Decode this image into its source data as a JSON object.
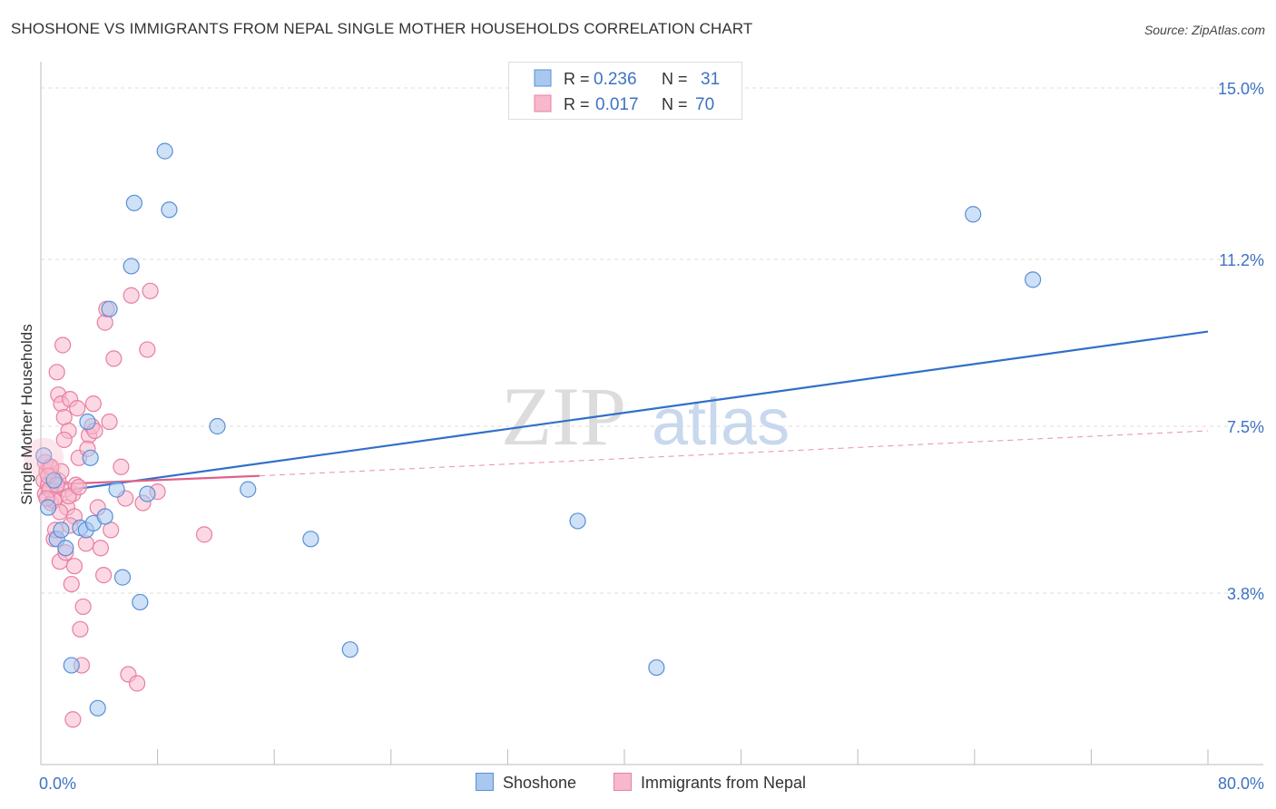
{
  "header": {
    "title": "SHOSHONE VS IMMIGRANTS FROM NEPAL SINGLE MOTHER HOUSEHOLDS CORRELATION CHART",
    "source": "Source: ZipAtlas.com"
  },
  "watermark": {
    "zip": "ZIP",
    "atlas": "atlas"
  },
  "colors": {
    "shoshone_fill": "#a8c8f0",
    "shoshone_stroke": "#5a8fd6",
    "shoshone_line": "#3070c8",
    "nepal_fill": "#f7b8cc",
    "nepal_stroke": "#e87fa0",
    "nepal_line": "#e0608a",
    "tick_text": "#3d72c4"
  },
  "chart_data": {
    "type": "scatter",
    "title": "SHOSHONE VS IMMIGRANTS FROM NEPAL SINGLE MOTHER HOUSEHOLDS CORRELATION CHART",
    "xlabel": "",
    "ylabel": "Single Mother Households",
    "xlim": [
      0,
      80
    ],
    "ylim": [
      0,
      15.7
    ],
    "x_tick_labels": [
      "0.0%",
      "80.0%"
    ],
    "y_ticks": [
      {
        "value": 15.0,
        "label": "15.0%"
      },
      {
        "value": 11.2,
        "label": "11.2%"
      },
      {
        "value": 7.5,
        "label": "7.5%"
      },
      {
        "value": 3.8,
        "label": "3.8%"
      }
    ],
    "legend": [
      {
        "series": "Shoshone",
        "r_label": "R =",
        "r_value": "0.236",
        "n_label": "N =",
        "n_value": "31"
      },
      {
        "series": "Immigrants from Nepal",
        "r_label": "R =",
        "r_value": "0.017",
        "n_label": "N =",
        "n_value": "70"
      }
    ],
    "series": [
      {
        "name": "Shoshone",
        "trend": {
          "x": [
            0,
            80
          ],
          "y": [
            6.0,
            9.6
          ]
        },
        "points": [
          {
            "x": 0.2,
            "y": 6.85
          },
          {
            "x": 0.5,
            "y": 5.7
          },
          {
            "x": 0.9,
            "y": 6.3
          },
          {
            "x": 1.1,
            "y": 5.0
          },
          {
            "x": 1.4,
            "y": 5.2
          },
          {
            "x": 1.7,
            "y": 4.8
          },
          {
            "x": 2.1,
            "y": 2.2
          },
          {
            "x": 2.7,
            "y": 5.25
          },
          {
            "x": 3.1,
            "y": 5.2
          },
          {
            "x": 3.2,
            "y": 7.6
          },
          {
            "x": 3.4,
            "y": 6.8
          },
          {
            "x": 3.6,
            "y": 5.35
          },
          {
            "x": 3.9,
            "y": 1.25
          },
          {
            "x": 4.4,
            "y": 5.5
          },
          {
            "x": 4.7,
            "y": 10.1
          },
          {
            "x": 5.2,
            "y": 6.1
          },
          {
            "x": 5.6,
            "y": 4.15
          },
          {
            "x": 6.2,
            "y": 11.05
          },
          {
            "x": 6.4,
            "y": 12.45
          },
          {
            "x": 6.8,
            "y": 3.6
          },
          {
            "x": 7.3,
            "y": 6.0
          },
          {
            "x": 8.5,
            "y": 13.6
          },
          {
            "x": 8.8,
            "y": 12.3
          },
          {
            "x": 12.1,
            "y": 7.5
          },
          {
            "x": 14.2,
            "y": 6.1
          },
          {
            "x": 18.5,
            "y": 5.0
          },
          {
            "x": 21.2,
            "y": 2.55
          },
          {
            "x": 36.8,
            "y": 5.4
          },
          {
            "x": 42.2,
            "y": 2.15
          },
          {
            "x": 63.9,
            "y": 12.2
          },
          {
            "x": 68.0,
            "y": 10.75
          }
        ]
      },
      {
        "name": "Immigrants from Nepal",
        "trend": {
          "x": [
            0,
            15
          ],
          "y": [
            6.2,
            6.4
          ]
        },
        "trend_extended": {
          "x": [
            15,
            80
          ],
          "y": [
            6.4,
            7.4
          ]
        },
        "points": [
          {
            "x": 0.2,
            "y": 6.3
          },
          {
            "x": 0.3,
            "y": 6.0
          },
          {
            "x": 0.4,
            "y": 6.5
          },
          {
            "x": 0.5,
            "y": 6.2
          },
          {
            "x": 0.6,
            "y": 6.6
          },
          {
            "x": 0.7,
            "y": 5.8
          },
          {
            "x": 0.8,
            "y": 6.4
          },
          {
            "x": 0.9,
            "y": 5.0
          },
          {
            "x": 1.0,
            "y": 5.9
          },
          {
            "x": 1.1,
            "y": 8.7
          },
          {
            "x": 1.2,
            "y": 8.2
          },
          {
            "x": 1.3,
            "y": 4.5
          },
          {
            "x": 1.4,
            "y": 8.0
          },
          {
            "x": 1.5,
            "y": 9.3
          },
          {
            "x": 1.6,
            "y": 7.7
          },
          {
            "x": 1.7,
            "y": 6.1
          },
          {
            "x": 1.8,
            "y": 5.7
          },
          {
            "x": 1.9,
            "y": 7.4
          },
          {
            "x": 2.0,
            "y": 8.1
          },
          {
            "x": 2.1,
            "y": 4.0
          },
          {
            "x": 2.2,
            "y": 6.0
          },
          {
            "x": 2.3,
            "y": 5.5
          },
          {
            "x": 2.4,
            "y": 6.2
          },
          {
            "x": 2.5,
            "y": 7.9
          },
          {
            "x": 2.6,
            "y": 6.8
          },
          {
            "x": 2.7,
            "y": 3.0
          },
          {
            "x": 2.8,
            "y": 2.2
          },
          {
            "x": 2.9,
            "y": 3.5
          },
          {
            "x": 3.1,
            "y": 4.9
          },
          {
            "x": 3.3,
            "y": 7.3
          },
          {
            "x": 3.5,
            "y": 7.5
          },
          {
            "x": 3.7,
            "y": 7.4
          },
          {
            "x": 3.9,
            "y": 5.7
          },
          {
            "x": 4.1,
            "y": 4.8
          },
          {
            "x": 4.3,
            "y": 4.2
          },
          {
            "x": 4.4,
            "y": 9.8
          },
          {
            "x": 4.5,
            "y": 10.1
          },
          {
            "x": 4.7,
            "y": 7.6
          },
          {
            "x": 4.8,
            "y": 5.2
          },
          {
            "x": 5.0,
            "y": 9.0
          },
          {
            "x": 5.5,
            "y": 6.6
          },
          {
            "x": 5.8,
            "y": 5.9
          },
          {
            "x": 6.0,
            "y": 2.0
          },
          {
            "x": 6.2,
            "y": 10.4
          },
          {
            "x": 6.6,
            "y": 1.8
          },
          {
            "x": 7.0,
            "y": 5.8
          },
          {
            "x": 7.3,
            "y": 9.2
          },
          {
            "x": 7.5,
            "y": 10.5
          },
          {
            "x": 8.0,
            "y": 6.05
          },
          {
            "x": 11.2,
            "y": 5.1
          },
          {
            "x": 2.2,
            "y": 1.0
          },
          {
            "x": 0.9,
            "y": 5.85
          },
          {
            "x": 1.2,
            "y": 6.3
          },
          {
            "x": 1.9,
            "y": 5.95
          },
          {
            "x": 0.6,
            "y": 6.1
          },
          {
            "x": 1.4,
            "y": 6.5
          },
          {
            "x": 2.3,
            "y": 4.4
          },
          {
            "x": 0.3,
            "y": 6.7
          },
          {
            "x": 1.0,
            "y": 5.2
          },
          {
            "x": 1.6,
            "y": 7.2
          },
          {
            "x": 2.6,
            "y": 6.15
          },
          {
            "x": 3.6,
            "y": 8.0
          },
          {
            "x": 0.7,
            "y": 6.6
          },
          {
            "x": 1.3,
            "y": 5.6
          },
          {
            "x": 2.0,
            "y": 5.3
          },
          {
            "x": 0.4,
            "y": 5.9
          },
          {
            "x": 1.7,
            "y": 4.7
          },
          {
            "x": 0.5,
            "y": 6.4
          },
          {
            "x": 3.2,
            "y": 7.0
          },
          {
            "x": 1.1,
            "y": 6.2
          }
        ]
      }
    ]
  }
}
